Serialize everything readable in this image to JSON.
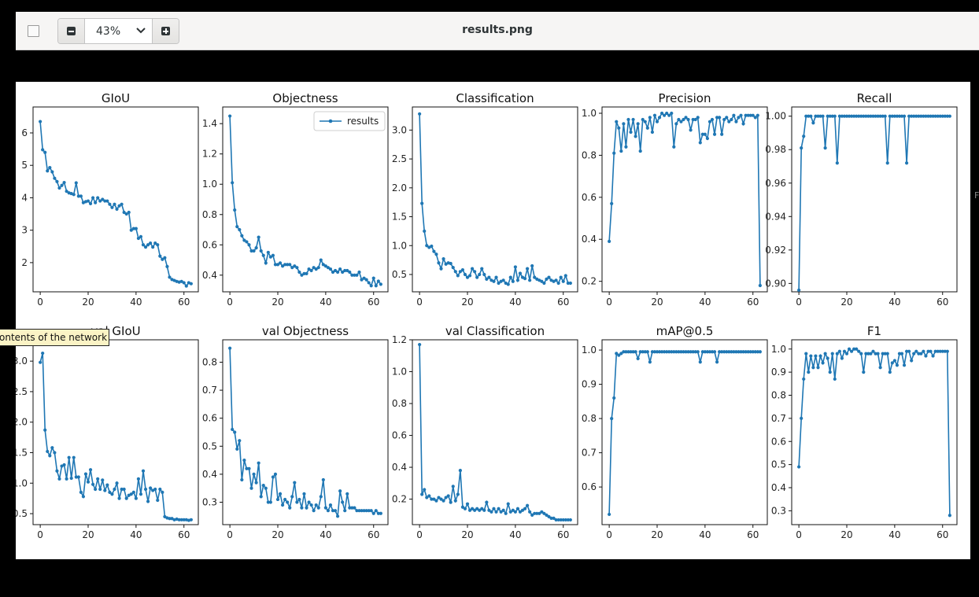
{
  "window": {
    "title": "results.png",
    "zoom_value": "43%",
    "tooltip": "ontents of the network",
    "edge_letter": "F"
  },
  "icons": {
    "sidebar": "sidebar-toggle-icon",
    "zoom_out": "minus-icon",
    "zoom_in": "plus-icon",
    "dropdown": "chevron-down-icon"
  },
  "colors": {
    "series": "#1f77b4",
    "toolbar_bg": "#f6f5f4",
    "tooltip_bg": "#fbf3c5"
  },
  "chart_data": [
    {
      "type": "line",
      "title": "GIoU",
      "xlim": [
        -3,
        66
      ],
      "ylim": [
        1.1,
        6.8
      ],
      "xticks": [
        0,
        20,
        40,
        60
      ],
      "yticks": [
        2,
        3,
        4,
        5,
        6
      ],
      "legend": null,
      "series": [
        {
          "name": "",
          "values": [
            6.35,
            5.48,
            5.4,
            4.83,
            4.93,
            4.8,
            4.6,
            4.5,
            4.3,
            4.38,
            4.47,
            4.2,
            4.15,
            4.13,
            4.1,
            4.46,
            4.05,
            4.05,
            3.85,
            3.88,
            3.9,
            3.82,
            4.0,
            3.85,
            4.0,
            3.9,
            3.95,
            3.9,
            3.9,
            3.8,
            3.7,
            3.8,
            3.65,
            3.75,
            3.8,
            3.55,
            3.5,
            3.55,
            3.0,
            3.05,
            3.05,
            2.75,
            2.8,
            2.55,
            2.48,
            2.55,
            2.6,
            2.48,
            2.6,
            2.55,
            2.2,
            2.1,
            2.15,
            1.88,
            1.55,
            1.48,
            1.45,
            1.42,
            1.4,
            1.42,
            1.38,
            1.28,
            1.38,
            1.35
          ]
        }
      ]
    },
    {
      "type": "line",
      "title": "Objectness",
      "xlim": [
        -3,
        66
      ],
      "ylim": [
        0.29,
        1.51
      ],
      "xticks": [
        0,
        20,
        40,
        60
      ],
      "yticks": [
        0.4,
        0.6,
        0.8,
        1.0,
        1.2,
        1.4
      ],
      "legend": "top-right",
      "series": [
        {
          "name": "results",
          "values": [
            1.45,
            1.01,
            0.83,
            0.72,
            0.7,
            0.66,
            0.63,
            0.62,
            0.6,
            0.56,
            0.56,
            0.58,
            0.65,
            0.56,
            0.53,
            0.48,
            0.55,
            0.52,
            0.53,
            0.47,
            0.47,
            0.48,
            0.46,
            0.47,
            0.47,
            0.47,
            0.45,
            0.46,
            0.45,
            0.42,
            0.4,
            0.41,
            0.41,
            0.44,
            0.43,
            0.45,
            0.44,
            0.45,
            0.5,
            0.47,
            0.46,
            0.45,
            0.44,
            0.42,
            0.43,
            0.42,
            0.44,
            0.42,
            0.43,
            0.43,
            0.42,
            0.4,
            0.4,
            0.4,
            0.42,
            0.37,
            0.38,
            0.37,
            0.35,
            0.33,
            0.38,
            0.33,
            0.36,
            0.34
          ]
        }
      ]
    },
    {
      "type": "line",
      "title": "Classification",
      "xlim": [
        -3,
        66
      ],
      "ylim": [
        0.2,
        3.4
      ],
      "xticks": [
        0,
        20,
        40,
        60
      ],
      "yticks": [
        0.5,
        1.0,
        1.5,
        2.0,
        2.5,
        3.0
      ],
      "legend": null,
      "series": [
        {
          "name": "",
          "values": [
            3.28,
            1.73,
            1.25,
            1.0,
            0.97,
            0.99,
            0.9,
            0.85,
            0.7,
            0.6,
            0.77,
            0.68,
            0.7,
            0.69,
            0.62,
            0.55,
            0.48,
            0.55,
            0.58,
            0.5,
            0.45,
            0.48,
            0.6,
            0.55,
            0.45,
            0.5,
            0.6,
            0.5,
            0.42,
            0.45,
            0.4,
            0.38,
            0.45,
            0.35,
            0.38,
            0.4,
            0.35,
            0.33,
            0.45,
            0.38,
            0.63,
            0.4,
            0.52,
            0.45,
            0.43,
            0.6,
            0.4,
            0.65,
            0.45,
            0.42,
            0.4,
            0.38,
            0.35,
            0.42,
            0.45,
            0.4,
            0.38,
            0.4,
            0.35,
            0.45,
            0.38,
            0.48,
            0.35,
            0.35
          ]
        }
      ]
    },
    {
      "type": "line",
      "title": "Precision",
      "xlim": [
        -3,
        66
      ],
      "ylim": [
        0.15,
        1.03
      ],
      "xticks": [
        0,
        20,
        40,
        60
      ],
      "yticks": [
        0.2,
        0.4,
        0.6,
        0.8,
        1.0
      ],
      "legend": null,
      "series": [
        {
          "name": "",
          "values": [
            0.39,
            0.57,
            0.81,
            0.96,
            0.93,
            0.82,
            0.95,
            0.84,
            0.97,
            0.91,
            0.97,
            0.89,
            0.95,
            0.82,
            0.97,
            0.96,
            0.93,
            0.98,
            0.91,
            0.99,
            0.96,
            0.98,
            1.0,
            0.99,
            1.0,
            0.99,
            1.0,
            0.84,
            0.95,
            0.97,
            0.96,
            0.97,
            0.98,
            0.97,
            0.92,
            0.97,
            0.97,
            0.98,
            0.86,
            0.9,
            0.9,
            0.88,
            0.96,
            0.97,
            0.9,
            0.98,
            0.98,
            0.9,
            0.97,
            0.98,
            0.96,
            0.97,
            0.99,
            0.96,
            0.98,
            0.99,
            0.95,
            0.99,
            0.99,
            0.99,
            0.99,
            0.98,
            0.99,
            0.18
          ]
        }
      ]
    },
    {
      "type": "line",
      "title": "Recall",
      "xlim": [
        -3,
        66
      ],
      "ylim": [
        0.895,
        1.0055
      ],
      "xticks": [
        0,
        20,
        40,
        60
      ],
      "yticks": [
        0.9,
        0.92,
        0.94,
        0.96,
        0.98,
        1.0
      ],
      "legend": null,
      "series": [
        {
          "name": "",
          "values": [
            0.896,
            0.981,
            0.988,
            1.0,
            1.0,
            1.0,
            0.996,
            1.0,
            1.0,
            1.0,
            1.0,
            0.981,
            1.0,
            1.0,
            1.0,
            1.0,
            0.972,
            1.0,
            1.0,
            1.0,
            1.0,
            1.0,
            1.0,
            1.0,
            1.0,
            1.0,
            1.0,
            1.0,
            1.0,
            1.0,
            1.0,
            1.0,
            1.0,
            1.0,
            1.0,
            1.0,
            1.0,
            0.972,
            1.0,
            1.0,
            1.0,
            1.0,
            1.0,
            1.0,
            1.0,
            0.972,
            1.0,
            1.0,
            1.0,
            1.0,
            1.0,
            1.0,
            1.0,
            1.0,
            1.0,
            1.0,
            1.0,
            1.0,
            1.0,
            1.0,
            1.0,
            1.0,
            1.0,
            1.0
          ]
        }
      ]
    },
    {
      "type": "line",
      "title": "val GIoU",
      "xlim": [
        -3,
        66
      ],
      "ylim": [
        0.32,
        3.35
      ],
      "xticks": [
        0,
        20,
        40,
        60
      ],
      "yticks": [
        0.5,
        1.0,
        1.5,
        2.0,
        2.5,
        3.0
      ],
      "legend": null,
      "series": [
        {
          "name": "",
          "values": [
            2.98,
            3.13,
            1.87,
            1.52,
            1.45,
            1.58,
            1.5,
            1.2,
            1.07,
            1.28,
            1.3,
            1.07,
            1.42,
            1.08,
            1.42,
            1.1,
            1.1,
            0.85,
            0.78,
            1.15,
            1.02,
            1.22,
            0.98,
            0.9,
            1.07,
            0.9,
            1.05,
            0.88,
            0.97,
            0.85,
            0.82,
            0.9,
            1.0,
            0.75,
            0.9,
            0.9,
            0.75,
            0.8,
            0.82,
            0.85,
            0.75,
            1.07,
            0.82,
            1.2,
            0.9,
            0.7,
            0.92,
            0.88,
            0.9,
            0.72,
            0.9,
            0.85,
            0.45,
            0.43,
            0.42,
            0.42,
            0.4,
            0.41,
            0.4,
            0.4,
            0.4,
            0.4,
            0.39,
            0.4
          ]
        }
      ]
    },
    {
      "type": "line",
      "title": "val Objectness",
      "xlim": [
        -3,
        66
      ],
      "ylim": [
        0.22,
        0.88
      ],
      "xticks": [
        0,
        20,
        40,
        60
      ],
      "yticks": [
        0.3,
        0.4,
        0.5,
        0.6,
        0.7,
        0.8
      ],
      "legend": null,
      "series": [
        {
          "name": "",
          "values": [
            0.85,
            0.56,
            0.55,
            0.49,
            0.52,
            0.38,
            0.45,
            0.42,
            0.42,
            0.35,
            0.4,
            0.37,
            0.44,
            0.32,
            0.36,
            0.35,
            0.3,
            0.3,
            0.39,
            0.4,
            0.31,
            0.33,
            0.29,
            0.31,
            0.3,
            0.28,
            0.32,
            0.37,
            0.3,
            0.31,
            0.28,
            0.33,
            0.28,
            0.3,
            0.29,
            0.27,
            0.29,
            0.28,
            0.32,
            0.38,
            0.28,
            0.27,
            0.29,
            0.27,
            0.27,
            0.25,
            0.34,
            0.3,
            0.27,
            0.33,
            0.28,
            0.28,
            0.28,
            0.27,
            0.27,
            0.27,
            0.27,
            0.27,
            0.27,
            0.27,
            0.26,
            0.27,
            0.26,
            0.26
          ]
        }
      ]
    },
    {
      "type": "line",
      "title": "val Classification",
      "xlim": [
        -3,
        66
      ],
      "ylim": [
        0.04,
        1.2
      ],
      "xticks": [
        0,
        20,
        40,
        60
      ],
      "yticks": [
        0.2,
        0.4,
        0.6,
        0.8,
        1.0,
        1.2
      ],
      "legend": null,
      "series": [
        {
          "name": "",
          "values": [
            1.17,
            0.23,
            0.26,
            0.21,
            0.22,
            0.2,
            0.2,
            0.19,
            0.21,
            0.2,
            0.19,
            0.21,
            0.22,
            0.18,
            0.28,
            0.19,
            0.23,
            0.38,
            0.15,
            0.14,
            0.17,
            0.13,
            0.14,
            0.13,
            0.14,
            0.13,
            0.14,
            0.13,
            0.18,
            0.13,
            0.12,
            0.14,
            0.12,
            0.14,
            0.12,
            0.13,
            0.11,
            0.17,
            0.12,
            0.13,
            0.12,
            0.14,
            0.12,
            0.13,
            0.14,
            0.16,
            0.12,
            0.1,
            0.11,
            0.11,
            0.11,
            0.12,
            0.11,
            0.1,
            0.09,
            0.08,
            0.08,
            0.07,
            0.07,
            0.07,
            0.07,
            0.07,
            0.07,
            0.07
          ]
        }
      ]
    },
    {
      "type": "line",
      "title": "mAP@0.5",
      "xlim": [
        -3,
        66
      ],
      "ylim": [
        0.49,
        1.03
      ],
      "xticks": [
        0,
        20,
        40,
        60
      ],
      "yticks": [
        0.6,
        0.7,
        0.8,
        0.9,
        1.0
      ],
      "legend": null,
      "series": [
        {
          "name": "",
          "values": [
            0.52,
            0.8,
            0.86,
            0.99,
            0.985,
            0.99,
            0.995,
            0.995,
            0.995,
            0.995,
            0.995,
            0.995,
            0.975,
            0.995,
            0.995,
            0.995,
            0.995,
            0.965,
            0.995,
            0.995,
            0.995,
            0.995,
            0.995,
            0.995,
            0.995,
            0.995,
            0.995,
            0.995,
            0.995,
            0.995,
            0.995,
            0.995,
            0.995,
            0.995,
            0.995,
            0.995,
            0.995,
            0.995,
            0.965,
            0.995,
            0.995,
            0.995,
            0.995,
            0.995,
            0.995,
            0.965,
            0.995,
            0.995,
            0.995,
            0.995,
            0.995,
            0.995,
            0.995,
            0.995,
            0.995,
            0.995,
            0.995,
            0.995,
            0.995,
            0.995,
            0.995,
            0.995,
            0.995,
            0.995
          ]
        }
      ]
    },
    {
      "type": "line",
      "title": "F1",
      "xlim": [
        -3,
        66
      ],
      "ylim": [
        0.24,
        1.04
      ],
      "xticks": [
        0,
        20,
        40,
        60
      ],
      "yticks": [
        0.3,
        0.4,
        0.5,
        0.6,
        0.7,
        0.8,
        0.9,
        1.0
      ],
      "legend": null,
      "series": [
        {
          "name": "",
          "values": [
            0.49,
            0.7,
            0.87,
            0.98,
            0.9,
            0.97,
            0.92,
            0.97,
            0.92,
            0.97,
            0.94,
            0.98,
            0.96,
            0.9,
            0.98,
            0.87,
            0.98,
            0.99,
            0.96,
            0.99,
            0.98,
            1.0,
            0.99,
            1.0,
            1.0,
            0.99,
            0.98,
            0.9,
            0.98,
            0.98,
            0.98,
            0.99,
            0.98,
            0.98,
            0.92,
            0.98,
            0.98,
            0.98,
            0.9,
            0.94,
            0.95,
            0.93,
            0.98,
            0.98,
            0.93,
            0.99,
            0.99,
            0.95,
            0.98,
            0.99,
            0.98,
            0.98,
            0.99,
            0.97,
            0.99,
            0.99,
            0.97,
            0.99,
            0.99,
            0.99,
            0.99,
            0.99,
            0.99,
            0.28
          ]
        }
      ]
    }
  ]
}
